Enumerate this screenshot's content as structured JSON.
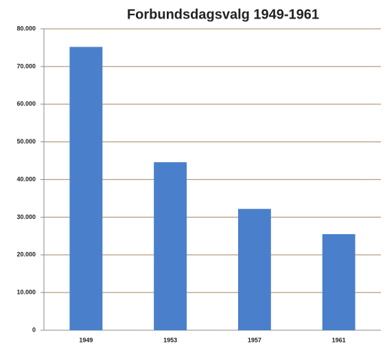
{
  "chart_data": {
    "type": "bar",
    "title": "Forbundsdagsvalg 1949-1961",
    "categories": [
      "1949",
      "1953",
      "1957",
      "1961"
    ],
    "values": [
      75200,
      44600,
      32200,
      25500
    ],
    "color": "#4a7fcb",
    "ylim": [
      0,
      80000
    ],
    "yticks": [
      0,
      {
        "value": 10000,
        "label": "10.000"
      },
      {
        "value": 20000,
        "label": "20.000"
      },
      {
        "value": 30000,
        "label": "30.000"
      },
      {
        "value": 40000,
        "label": "40.000"
      },
      {
        "value": 50000,
        "label": "50.000"
      },
      {
        "value": 60000,
        "label": "60.000"
      },
      {
        "value": 70000,
        "label": "70.000"
      },
      {
        "value": 80000,
        "label": "80.000"
      }
    ],
    "grid": true
  }
}
